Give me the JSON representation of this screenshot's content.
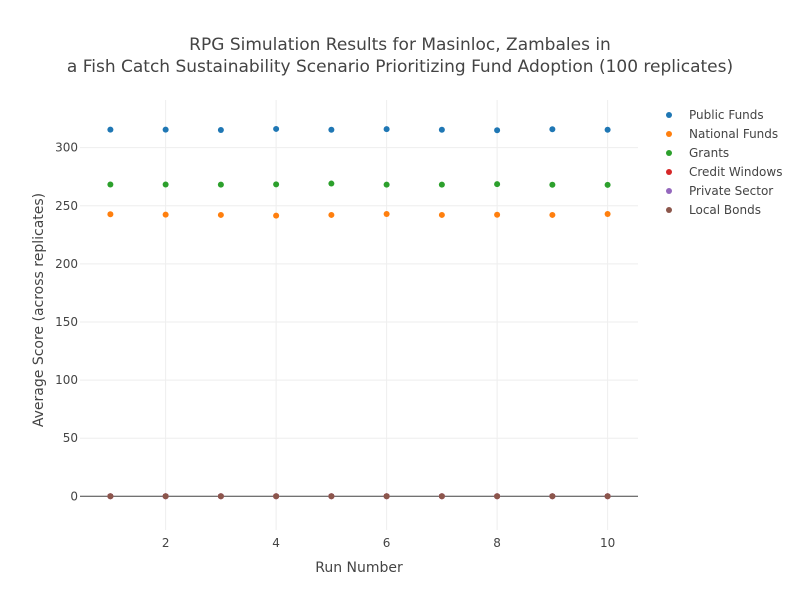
{
  "chart_data": {
    "type": "scatter",
    "title_lines": [
      "RPG Simulation Results for Masinloc, Zambales in",
      "a Fish Catch Sustainability Scenario Prioritizing Fund Adoption (100 replicates)"
    ],
    "xlabel": "Run Number",
    "ylabel": "Average Score (across replicates)",
    "xlim": [
      0.45,
      10.55
    ],
    "ylim": [
      -29,
      341
    ],
    "xticks": [
      2,
      4,
      6,
      8,
      10
    ],
    "yticks": [
      0,
      50,
      100,
      150,
      200,
      250,
      300
    ],
    "grid": true,
    "legend_position": "top-right",
    "x": [
      1,
      2,
      3,
      4,
      5,
      6,
      7,
      8,
      9,
      10
    ],
    "series": [
      {
        "name": "Public Funds",
        "color": "#1f77b4",
        "values": [
          315.5,
          315.5,
          315.2,
          316.1,
          315.4,
          315.9,
          315.4,
          315.0,
          315.8,
          315.4
        ]
      },
      {
        "name": "National Funds",
        "color": "#ff7f0e",
        "values": [
          242.7,
          242.4,
          242.1,
          241.5,
          242.1,
          242.9,
          242.1,
          242.3,
          242.1,
          242.9
        ]
      },
      {
        "name": "Grants",
        "color": "#2ca02c",
        "values": [
          268.3,
          268.3,
          268.2,
          268.4,
          269.1,
          268.2,
          268.2,
          268.6,
          268.1,
          268.0
        ]
      },
      {
        "name": "Credit Windows",
        "color": "#d62728",
        "values": [
          0,
          0,
          0,
          0,
          0,
          0,
          0,
          0,
          0,
          0
        ]
      },
      {
        "name": "Private Sector",
        "color": "#9467bd",
        "values": [
          0,
          0,
          0,
          0,
          0,
          0,
          0,
          0,
          0,
          0
        ]
      },
      {
        "name": "Local Bonds",
        "color": "#8c564b",
        "values": [
          0,
          0,
          0,
          0,
          0,
          0,
          0,
          0,
          0,
          0
        ]
      }
    ]
  }
}
